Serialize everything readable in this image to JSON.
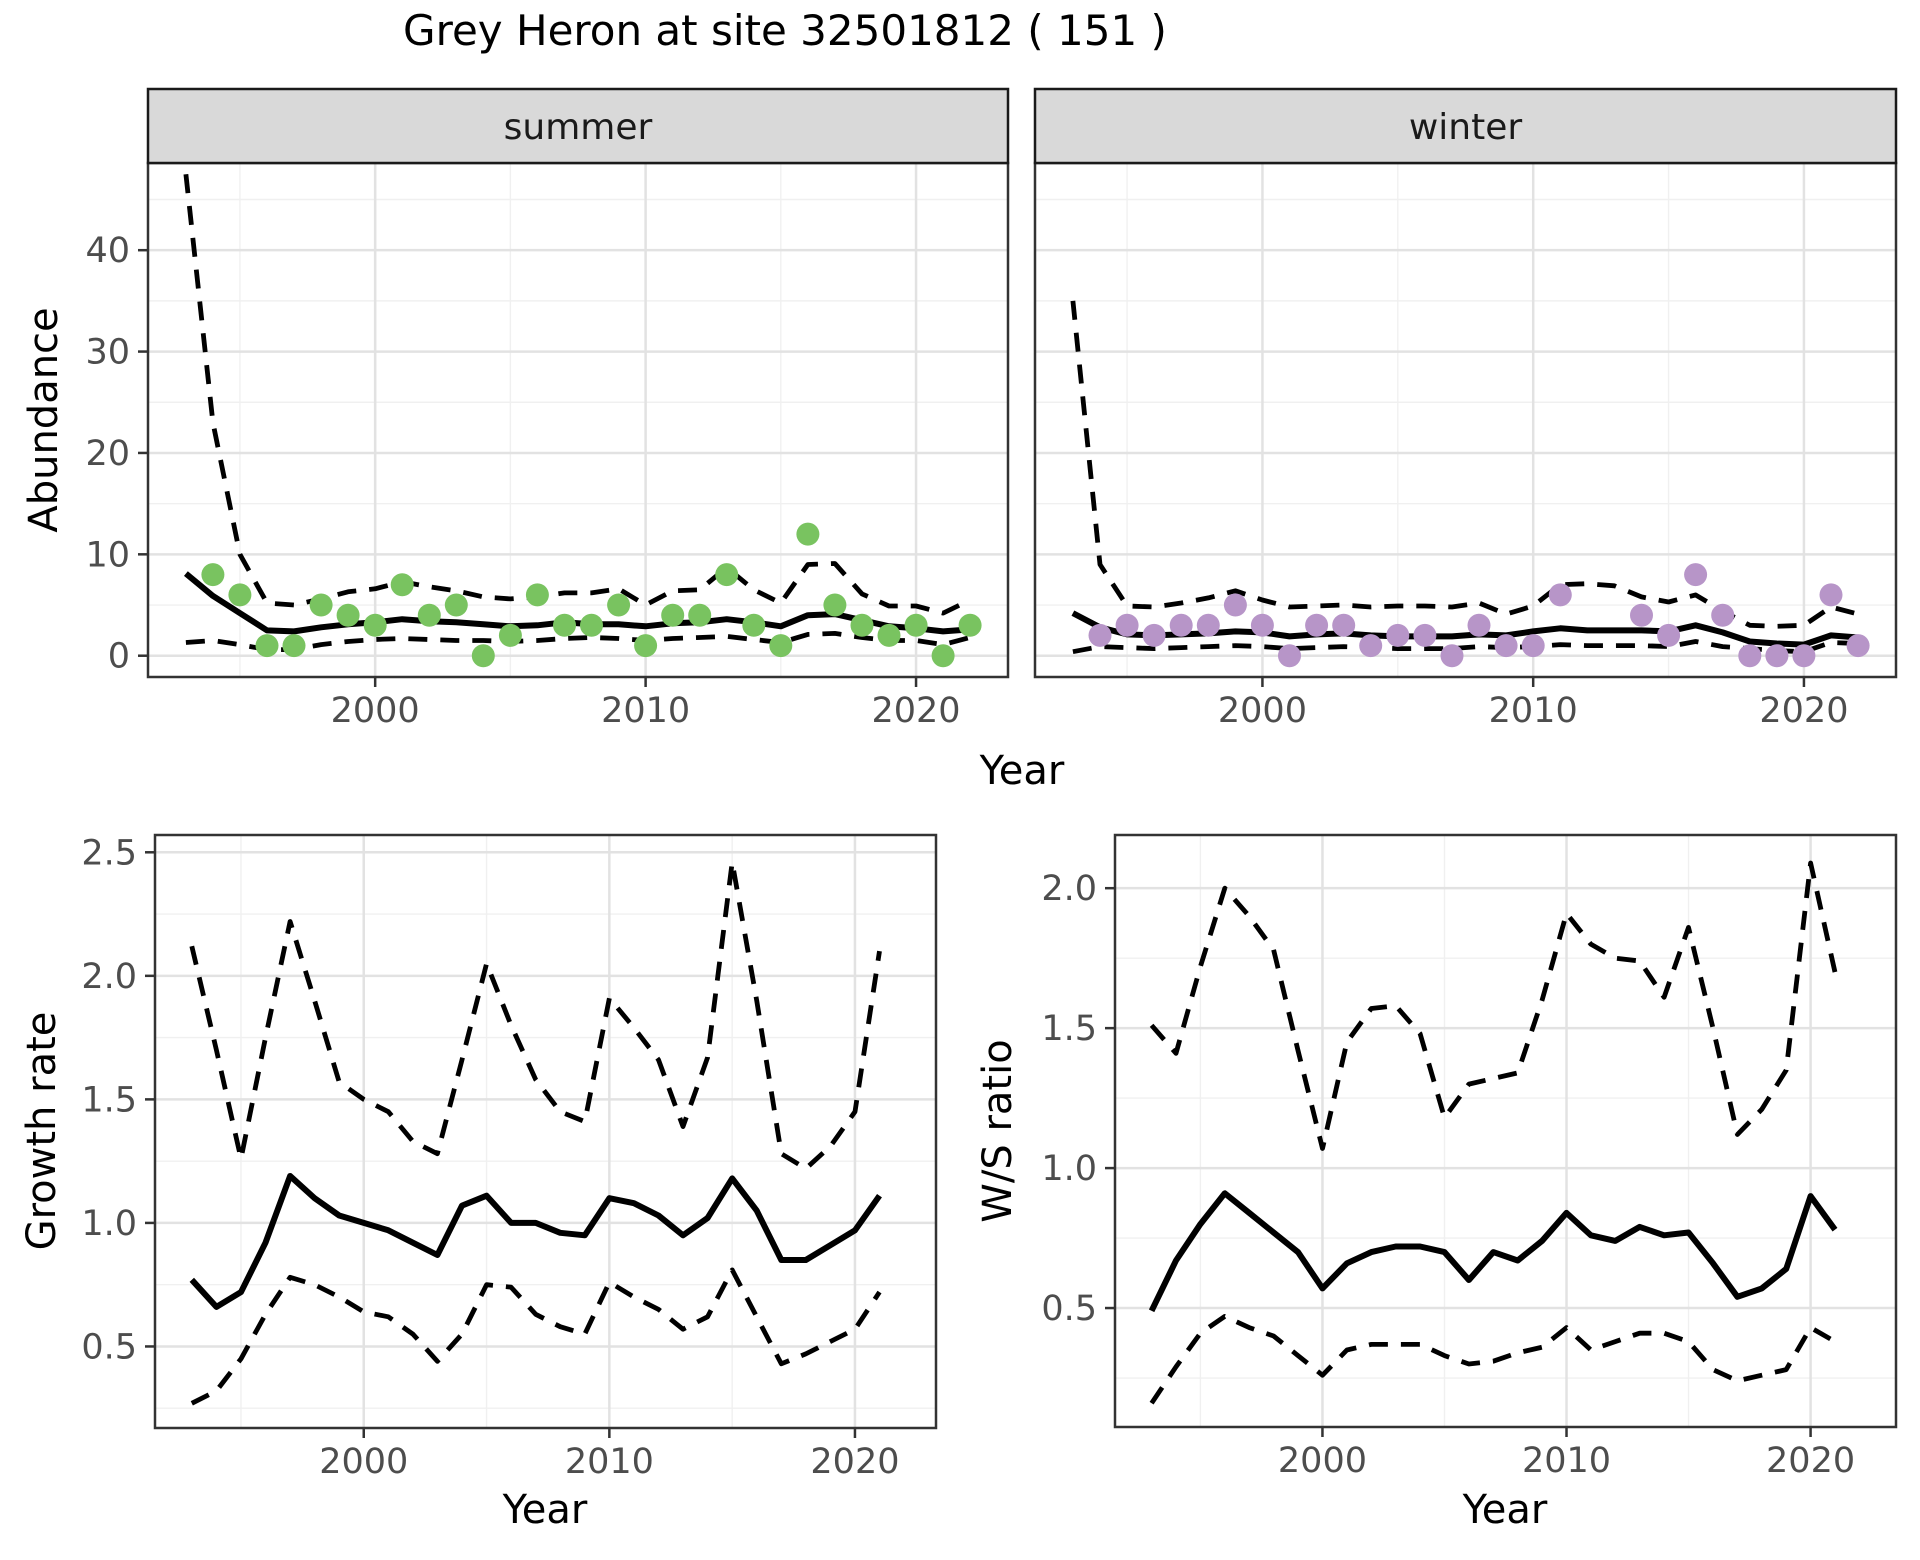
{
  "title": "Grey Heron at site 32501812 ( 151 )",
  "labels": {
    "abundance_axis": "Abundance",
    "year_axis_top": "Year",
    "growth_axis": "Growth rate",
    "year_axis_growth": "Year",
    "ws_axis": "W/S ratio",
    "year_axis_ws": "Year"
  },
  "colors": {
    "summer_point": "#79C360",
    "winter_point": "#B795C8",
    "line": "#000000",
    "strip_bg": "#D9D9D9",
    "strip_border": "#1A1A1A",
    "strip_text": "#1A1A1A",
    "panel_border": "#333333",
    "grid_major": "#E2E2E2",
    "grid_minor": "#F0F0F0",
    "tick_label": "#4D4D4D",
    "tick_mark": "#333333"
  },
  "chart_data": [
    {
      "id": "abundance-summer",
      "type": "scatter",
      "facet": "summer",
      "xlabel": "Year",
      "ylabel": "Abundance",
      "xlim": [
        1991.6,
        2023.4
      ],
      "ylim": [
        -2.1,
        48.6
      ],
      "xticks": [
        {
          "v": 2000,
          "label": "2000"
        },
        {
          "v": 2010,
          "label": "2010"
        },
        {
          "v": 2020,
          "label": "2020"
        }
      ],
      "xminor": [
        1995,
        2005,
        2015
      ],
      "yticks": [
        {
          "v": 0,
          "label": "0"
        },
        {
          "v": 10,
          "label": "10"
        },
        {
          "v": 20,
          "label": "20"
        },
        {
          "v": 30,
          "label": "30"
        },
        {
          "v": 40,
          "label": "40"
        }
      ],
      "yminor": [
        5,
        15,
        25,
        35,
        45
      ],
      "point_color": "#79C360",
      "points": {
        "years": [
          1994,
          1995,
          1996,
          1997,
          1998,
          1999,
          2000,
          2001,
          2002,
          2003,
          2004,
          2005,
          2006,
          2007,
          2008,
          2009,
          2010,
          2011,
          2012,
          2013,
          2014,
          2015,
          2016,
          2017,
          2018,
          2019,
          2020,
          2021,
          2022
        ],
        "values": [
          8,
          6,
          1,
          1,
          5,
          4,
          3,
          7,
          4,
          5,
          0,
          2,
          6,
          3,
          3,
          5,
          1,
          4,
          4,
          8,
          3,
          1,
          12,
          5,
          3,
          2,
          3,
          0,
          3
        ]
      },
      "fit": {
        "years": [
          1993,
          1994,
          1995,
          1996,
          1997,
          1998,
          1999,
          2000,
          2001,
          2002,
          2003,
          2004,
          2005,
          2006,
          2007,
          2008,
          2009,
          2010,
          2011,
          2012,
          2013,
          2014,
          2015,
          2016,
          2017,
          2018,
          2019,
          2020,
          2021,
          2022
        ],
        "values": [
          8.1,
          5.9,
          4.2,
          2.5,
          2.4,
          2.8,
          3.1,
          3.3,
          3.6,
          3.4,
          3.3,
          3.1,
          2.9,
          3.0,
          3.3,
          3.1,
          3.1,
          2.9,
          3.2,
          3.3,
          3.6,
          3.3,
          2.9,
          4.0,
          4.1,
          3.5,
          2.9,
          2.7,
          2.4,
          2.6
        ]
      },
      "upper": {
        "years": [
          1993,
          1994,
          1995,
          1996,
          1997,
          1998,
          1999,
          2000,
          2001,
          2002,
          2003,
          2004,
          2005,
          2006,
          2007,
          2008,
          2009,
          2010,
          2011,
          2012,
          2013,
          2014,
          2015,
          2016,
          2017,
          2018,
          2019,
          2020,
          2021,
          2022
        ],
        "values": [
          47.5,
          23,
          10,
          5.2,
          5.0,
          5.6,
          6.3,
          6.6,
          7.3,
          6.8,
          6.4,
          5.8,
          5.6,
          5.8,
          6.2,
          6.2,
          6.6,
          5.0,
          6.4,
          6.5,
          8.7,
          6.5,
          5.2,
          9.0,
          9.1,
          6.1,
          4.9,
          4.9,
          4.2,
          5.5
        ]
      },
      "lower": {
        "years": [
          1993,
          1994,
          1995,
          1996,
          1997,
          1998,
          1999,
          2000,
          2001,
          2002,
          2003,
          2004,
          2005,
          2006,
          2007,
          2008,
          2009,
          2010,
          2011,
          2012,
          2013,
          2014,
          2015,
          2016,
          2017,
          2018,
          2019,
          2020,
          2021,
          2022
        ],
        "values": [
          1.3,
          1.5,
          1.1,
          0.6,
          0.6,
          1.1,
          1.4,
          1.6,
          1.7,
          1.6,
          1.5,
          1.5,
          1.4,
          1.5,
          1.7,
          1.8,
          1.7,
          1.5,
          1.7,
          1.8,
          1.9,
          1.6,
          1.3,
          2.1,
          2.2,
          1.8,
          1.5,
          1.5,
          1.1,
          1.8
        ]
      }
    },
    {
      "id": "abundance-winter",
      "type": "scatter",
      "facet": "winter",
      "xlabel": "Year",
      "ylabel": "Abundance",
      "xlim": [
        1991.6,
        2023.4
      ],
      "ylim": [
        -2.1,
        48.6
      ],
      "xticks": [
        {
          "v": 2000,
          "label": "2000"
        },
        {
          "v": 2010,
          "label": "2010"
        },
        {
          "v": 2020,
          "label": "2020"
        }
      ],
      "xminor": [
        1995,
        2005,
        2015
      ],
      "yticks": [
        {
          "v": 0,
          "label": "0"
        },
        {
          "v": 10,
          "label": "10"
        },
        {
          "v": 20,
          "label": "20"
        },
        {
          "v": 30,
          "label": "30"
        },
        {
          "v": 40,
          "label": "40"
        }
      ],
      "yminor": [
        5,
        15,
        25,
        35,
        45
      ],
      "point_color": "#B795C8",
      "points": {
        "years": [
          1994,
          1995,
          1996,
          1997,
          1998,
          1999,
          2000,
          2001,
          2002,
          2003,
          2004,
          2005,
          2006,
          2007,
          2008,
          2009,
          2010,
          2011,
          2014,
          2015,
          2016,
          2017,
          2018,
          2019,
          2020,
          2021,
          2022
        ],
        "values": [
          2,
          3,
          2,
          3,
          3,
          5,
          3,
          0,
          3,
          3,
          1,
          2,
          2,
          0,
          3,
          1,
          1,
          6,
          4,
          2,
          8,
          4,
          0,
          0,
          0,
          6,
          1
        ]
      },
      "fit": {
        "years": [
          1993,
          1994,
          1995,
          1996,
          1997,
          1998,
          1999,
          2000,
          2001,
          2002,
          2003,
          2004,
          2005,
          2006,
          2007,
          2008,
          2009,
          2010,
          2011,
          2012,
          2013,
          2014,
          2015,
          2016,
          2017,
          2018,
          2019,
          2020,
          2021,
          2022
        ],
        "values": [
          4.2,
          2.8,
          2.1,
          2.0,
          2.1,
          2.2,
          2.4,
          2.3,
          1.9,
          2.1,
          2.2,
          2.0,
          1.9,
          1.9,
          1.9,
          2.1,
          2.0,
          2.4,
          2.7,
          2.5,
          2.5,
          2.5,
          2.4,
          3.0,
          2.3,
          1.4,
          1.2,
          1.1,
          2.0,
          1.8
        ]
      },
      "upper": {
        "years": [
          1993,
          1994,
          1995,
          1996,
          1997,
          1998,
          1999,
          2000,
          2001,
          2002,
          2003,
          2004,
          2005,
          2006,
          2007,
          2008,
          2009,
          2010,
          2011,
          2012,
          2013,
          2014,
          2015,
          2016,
          2017,
          2018,
          2019,
          2020,
          2021,
          2022
        ],
        "values": [
          35,
          9,
          4.9,
          4.8,
          5.2,
          5.7,
          6.4,
          5.5,
          4.8,
          4.9,
          5.0,
          4.8,
          4.9,
          4.9,
          4.8,
          5.2,
          4.1,
          4.9,
          7.0,
          7.1,
          6.9,
          5.8,
          5.3,
          6.0,
          4.4,
          3.0,
          2.9,
          3.0,
          4.8,
          4.1
        ]
      },
      "lower": {
        "years": [
          1993,
          1994,
          1995,
          1996,
          1997,
          1998,
          1999,
          2000,
          2001,
          2002,
          2003,
          2004,
          2005,
          2006,
          2007,
          2008,
          2009,
          2010,
          2011,
          2012,
          2013,
          2014,
          2015,
          2016,
          2017,
          2018,
          2019,
          2020,
          2021,
          2022
        ],
        "values": [
          0.4,
          0.9,
          0.8,
          0.7,
          0.8,
          0.9,
          1.0,
          0.9,
          0.7,
          0.8,
          0.9,
          0.8,
          0.7,
          0.7,
          0.7,
          0.9,
          0.8,
          0.9,
          1.1,
          1.0,
          1.0,
          1.0,
          0.9,
          1.4,
          0.9,
          0.7,
          0.5,
          0.4,
          1.3,
          1.2
        ]
      }
    },
    {
      "id": "growth-rate",
      "type": "line",
      "facet": null,
      "xlabel": "Year",
      "ylabel": "Growth rate",
      "xlim": [
        1991.5,
        2023.3
      ],
      "ylim": [
        0.17,
        2.57
      ],
      "xticks": [
        {
          "v": 2000,
          "label": "2000"
        },
        {
          "v": 2010,
          "label": "2010"
        },
        {
          "v": 2020,
          "label": "2020"
        }
      ],
      "xminor": [
        1995,
        2005,
        2015
      ],
      "yticks": [
        {
          "v": 0.5,
          "label": "0.5"
        },
        {
          "v": 1.0,
          "label": "1.0"
        },
        {
          "v": 1.5,
          "label": "1.5"
        },
        {
          "v": 2.0,
          "label": "2.0"
        },
        {
          "v": 2.5,
          "label": "2.5"
        }
      ],
      "yminor": [
        0.25,
        0.75,
        1.25,
        1.75,
        2.25
      ],
      "fit": {
        "years": [
          1993,
          1994,
          1995,
          1996,
          1997,
          1998,
          1999,
          2000,
          2001,
          2002,
          2003,
          2004,
          2005,
          2006,
          2007,
          2008,
          2009,
          2010,
          2011,
          2012,
          2013,
          2014,
          2015,
          2016,
          2017,
          2018,
          2019,
          2020,
          2021
        ],
        "values": [
          0.77,
          0.66,
          0.72,
          0.92,
          1.19,
          1.1,
          1.03,
          1.0,
          0.97,
          0.92,
          0.87,
          1.07,
          1.11,
          1.0,
          1.0,
          0.96,
          0.95,
          1.1,
          1.08,
          1.03,
          0.95,
          1.02,
          1.18,
          1.05,
          0.85,
          0.85,
          0.91,
          0.97,
          1.11
        ]
      },
      "upper": {
        "years": [
          1993,
          1994,
          1995,
          1996,
          1997,
          1998,
          1999,
          2000,
          2001,
          2002,
          2003,
          2004,
          2005,
          2006,
          2007,
          2008,
          2009,
          2010,
          2011,
          2012,
          2013,
          2014,
          2015,
          2016,
          2017,
          2018,
          2019,
          2020,
          2021
        ],
        "values": [
          2.12,
          1.7,
          1.26,
          1.75,
          2.22,
          1.9,
          1.57,
          1.5,
          1.45,
          1.33,
          1.28,
          1.66,
          2.05,
          1.8,
          1.58,
          1.45,
          1.41,
          1.91,
          1.79,
          1.66,
          1.39,
          1.67,
          2.46,
          1.9,
          1.28,
          1.22,
          1.31,
          1.45,
          2.1
        ]
      },
      "lower": {
        "years": [
          1993,
          1994,
          1995,
          1996,
          1997,
          1998,
          1999,
          2000,
          2001,
          2002,
          2003,
          2004,
          2005,
          2006,
          2007,
          2008,
          2009,
          2010,
          2011,
          2012,
          2013,
          2014,
          2015,
          2016,
          2017,
          2018,
          2019,
          2020,
          2021
        ],
        "values": [
          0.27,
          0.32,
          0.45,
          0.63,
          0.78,
          0.75,
          0.7,
          0.64,
          0.62,
          0.55,
          0.44,
          0.55,
          0.75,
          0.74,
          0.63,
          0.58,
          0.55,
          0.76,
          0.7,
          0.65,
          0.57,
          0.62,
          0.81,
          0.62,
          0.43,
          0.47,
          0.52,
          0.57,
          0.72
        ]
      }
    },
    {
      "id": "ws-ratio",
      "type": "line",
      "facet": null,
      "xlabel": "Year",
      "ylabel": "W/S ratio",
      "xlim": [
        1991.5,
        2023.5
      ],
      "ylim": [
        0.075,
        2.19
      ],
      "xticks": [
        {
          "v": 2000,
          "label": "2000"
        },
        {
          "v": 2010,
          "label": "2010"
        },
        {
          "v": 2020,
          "label": "2020"
        }
      ],
      "xminor": [
        1995,
        2005,
        2015
      ],
      "yticks": [
        {
          "v": 0.5,
          "label": "0.5"
        },
        {
          "v": 1.0,
          "label": "1.0"
        },
        {
          "v": 1.5,
          "label": "1.5"
        },
        {
          "v": 2.0,
          "label": "2.0"
        }
      ],
      "yminor": [
        0.25,
        0.75,
        1.25,
        1.75
      ],
      "fit": {
        "years": [
          1993,
          1994,
          1995,
          1996,
          1997,
          1998,
          1999,
          2000,
          2001,
          2002,
          2003,
          2004,
          2005,
          2006,
          2007,
          2008,
          2009,
          2010,
          2011,
          2012,
          2013,
          2014,
          2015,
          2016,
          2017,
          2018,
          2019,
          2020,
          2021
        ],
        "values": [
          0.49,
          0.67,
          0.8,
          0.91,
          0.84,
          0.77,
          0.7,
          0.57,
          0.66,
          0.7,
          0.72,
          0.72,
          0.7,
          0.6,
          0.7,
          0.67,
          0.74,
          0.84,
          0.76,
          0.74,
          0.79,
          0.76,
          0.77,
          0.66,
          0.54,
          0.57,
          0.64,
          0.9,
          0.78
        ]
      },
      "upper": {
        "years": [
          1993,
          1994,
          1995,
          1996,
          1997,
          1998,
          1999,
          2000,
          2001,
          2002,
          2003,
          2004,
          2005,
          2006,
          2007,
          2008,
          2009,
          2010,
          2011,
          2012,
          2013,
          2014,
          2015,
          2016,
          2017,
          2018,
          2019,
          2020,
          2021
        ],
        "values": [
          1.51,
          1.41,
          1.72,
          2.0,
          1.9,
          1.78,
          1.42,
          1.07,
          1.45,
          1.57,
          1.58,
          1.48,
          1.18,
          1.3,
          1.32,
          1.34,
          1.6,
          1.91,
          1.8,
          1.75,
          1.74,
          1.61,
          1.86,
          1.5,
          1.12,
          1.21,
          1.35,
          2.09,
          1.7
        ]
      },
      "lower": {
        "years": [
          1993,
          1994,
          1995,
          1996,
          1997,
          1998,
          1999,
          2000,
          2001,
          2002,
          2003,
          2004,
          2005,
          2006,
          2007,
          2008,
          2009,
          2010,
          2011,
          2012,
          2013,
          2014,
          2015,
          2016,
          2017,
          2018,
          2019,
          2020,
          2021
        ],
        "values": [
          0.16,
          0.29,
          0.41,
          0.47,
          0.43,
          0.4,
          0.33,
          0.26,
          0.35,
          0.37,
          0.37,
          0.37,
          0.33,
          0.3,
          0.31,
          0.34,
          0.36,
          0.43,
          0.35,
          0.38,
          0.41,
          0.41,
          0.38,
          0.28,
          0.24,
          0.26,
          0.28,
          0.43,
          0.38
        ]
      }
    }
  ]
}
